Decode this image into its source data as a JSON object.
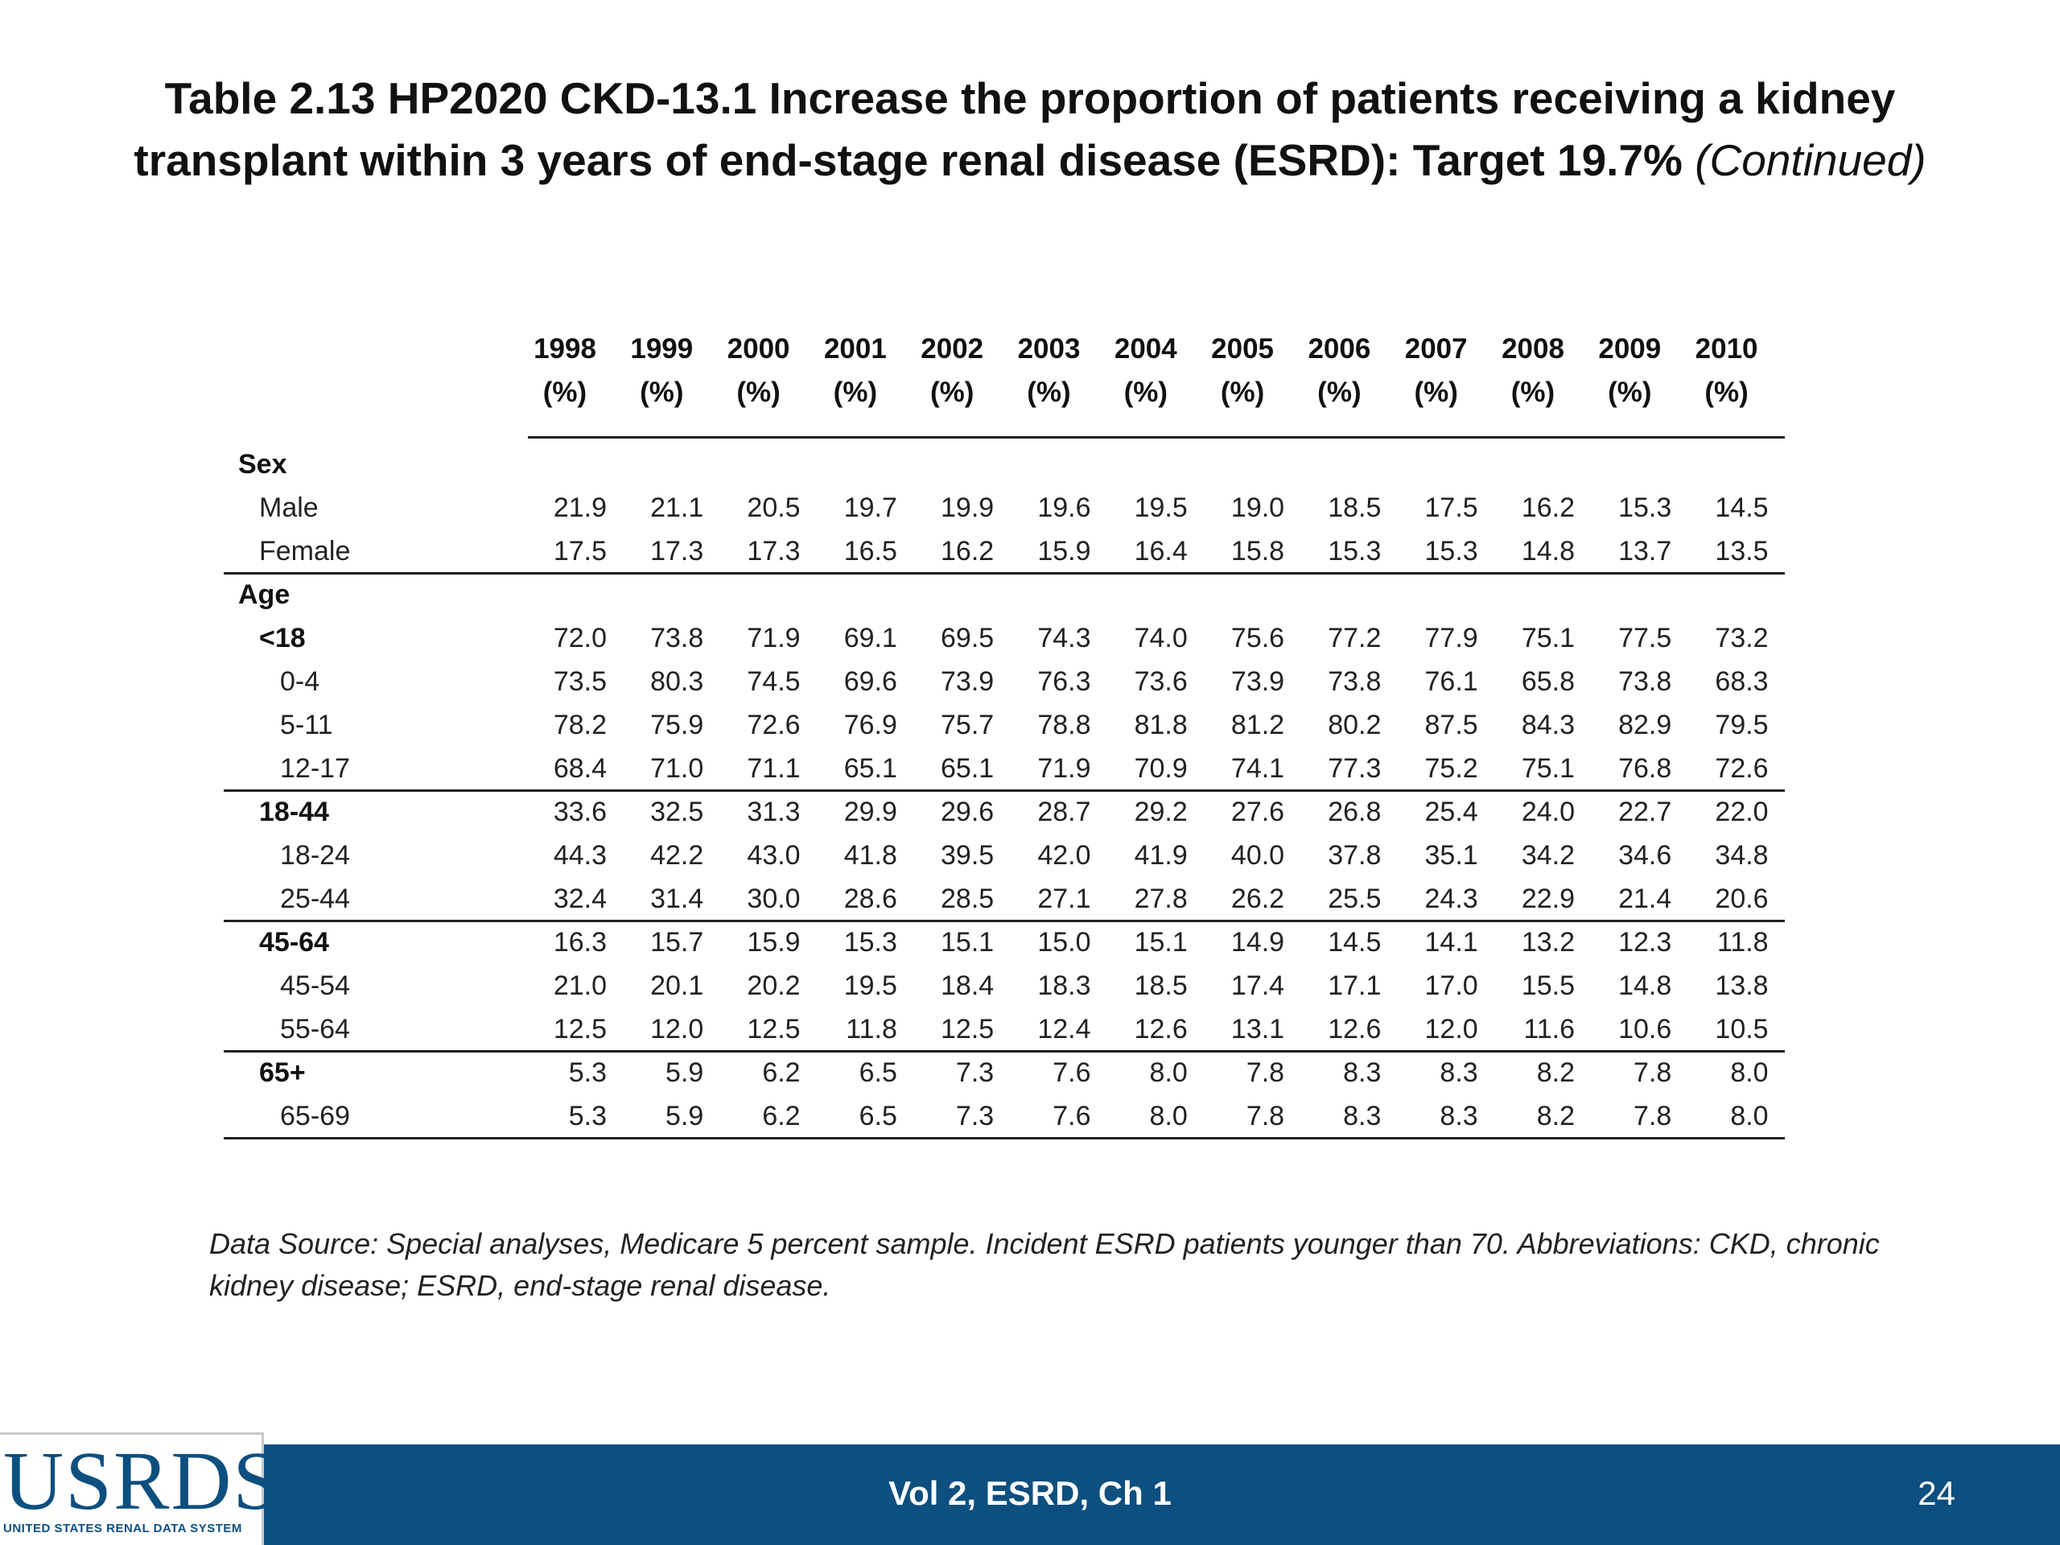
{
  "slide": {
    "title_main": "Table 2.13 HP2020 CKD-13.1 Increase the proportion of patients receiving a kidney transplant within 3 years of end-stage renal disease (ESRD): Target 19.7%",
    "title_continued": "(Continued)",
    "source_note": "Data Source: Special analyses, Medicare 5 percent sample. Incident ESRD patients younger than 70. Abbreviations: CKD, chronic kidney disease; ESRD, end-stage renal disease.",
    "footer_center": "Vol 2, ESRD, Ch 1",
    "page_number": "24",
    "logo_text": "USRDS",
    "logo_subtext": "UNITED STATES RENAL DATA SYSTEM"
  },
  "colors": {
    "footer_bar": "#0d4f7f",
    "logo": "#0d4f7f"
  },
  "table": {
    "years": [
      "1998",
      "1999",
      "2000",
      "2001",
      "2002",
      "2003",
      "2004",
      "2005",
      "2006",
      "2007",
      "2008",
      "2009",
      "2010"
    ],
    "unit": "(%)",
    "rows": [
      {
        "label": "Sex",
        "indent": 0,
        "bold": true,
        "values": []
      },
      {
        "label": "Male",
        "indent": 1,
        "bold": false,
        "values": [
          "21.9",
          "21.1",
          "20.5",
          "19.7",
          "19.9",
          "19.6",
          "19.5",
          "19.0",
          "18.5",
          "17.5",
          "16.2",
          "15.3",
          "14.5"
        ]
      },
      {
        "label": "Female",
        "indent": 1,
        "bold": false,
        "values": [
          "17.5",
          "17.3",
          "17.3",
          "16.5",
          "16.2",
          "15.9",
          "16.4",
          "15.8",
          "15.3",
          "15.3",
          "14.8",
          "13.7",
          "13.5"
        ]
      },
      {
        "label": "Age",
        "indent": 0,
        "bold": true,
        "values": []
      },
      {
        "label": "<18",
        "indent": 1,
        "bold": true,
        "values": [
          "72.0",
          "73.8",
          "71.9",
          "69.1",
          "69.5",
          "74.3",
          "74.0",
          "75.6",
          "77.2",
          "77.9",
          "75.1",
          "77.5",
          "73.2"
        ]
      },
      {
        "label": "0-4",
        "indent": 2,
        "bold": false,
        "values": [
          "73.5",
          "80.3",
          "74.5",
          "69.6",
          "73.9",
          "76.3",
          "73.6",
          "73.9",
          "73.8",
          "76.1",
          "65.8",
          "73.8",
          "68.3"
        ]
      },
      {
        "label": "5-11",
        "indent": 2,
        "bold": false,
        "values": [
          "78.2",
          "75.9",
          "72.6",
          "76.9",
          "75.7",
          "78.8",
          "81.8",
          "81.2",
          "80.2",
          "87.5",
          "84.3",
          "82.9",
          "79.5"
        ]
      },
      {
        "label": "12-17",
        "indent": 2,
        "bold": false,
        "values": [
          "68.4",
          "71.0",
          "71.1",
          "65.1",
          "65.1",
          "71.9",
          "70.9",
          "74.1",
          "77.3",
          "75.2",
          "75.1",
          "76.8",
          "72.6"
        ]
      },
      {
        "label": "18-44",
        "indent": 1,
        "bold": true,
        "values": [
          "33.6",
          "32.5",
          "31.3",
          "29.9",
          "29.6",
          "28.7",
          "29.2",
          "27.6",
          "26.8",
          "25.4",
          "24.0",
          "22.7",
          "22.0"
        ]
      },
      {
        "label": "18-24",
        "indent": 2,
        "bold": false,
        "values": [
          "44.3",
          "42.2",
          "43.0",
          "41.8",
          "39.5",
          "42.0",
          "41.9",
          "40.0",
          "37.8",
          "35.1",
          "34.2",
          "34.6",
          "34.8"
        ]
      },
      {
        "label": "25-44",
        "indent": 2,
        "bold": false,
        "values": [
          "32.4",
          "31.4",
          "30.0",
          "28.6",
          "28.5",
          "27.1",
          "27.8",
          "26.2",
          "25.5",
          "24.3",
          "22.9",
          "21.4",
          "20.6"
        ]
      },
      {
        "label": "45-64",
        "indent": 1,
        "bold": true,
        "values": [
          "16.3",
          "15.7",
          "15.9",
          "15.3",
          "15.1",
          "15.0",
          "15.1",
          "14.9",
          "14.5",
          "14.1",
          "13.2",
          "12.3",
          "11.8"
        ]
      },
      {
        "label": "45-54",
        "indent": 2,
        "bold": false,
        "values": [
          "21.0",
          "20.1",
          "20.2",
          "19.5",
          "18.4",
          "18.3",
          "18.5",
          "17.4",
          "17.1",
          "17.0",
          "15.5",
          "14.8",
          "13.8"
        ]
      },
      {
        "label": "55-64",
        "indent": 2,
        "bold": false,
        "values": [
          "12.5",
          "12.0",
          "12.5",
          "11.8",
          "12.5",
          "12.4",
          "12.6",
          "13.1",
          "12.6",
          "12.0",
          "11.6",
          "10.6",
          "10.5"
        ]
      },
      {
        "label": "65+",
        "indent": 1,
        "bold": true,
        "values": [
          "5.3",
          "5.9",
          "6.2",
          "6.5",
          "7.3",
          "7.6",
          "8.0",
          "7.8",
          "8.3",
          "8.3",
          "8.2",
          "7.8",
          "8.0"
        ]
      },
      {
        "label": "65-69",
        "indent": 2,
        "bold": false,
        "values": [
          "5.3",
          "5.9",
          "6.2",
          "6.5",
          "7.3",
          "7.6",
          "8.0",
          "7.8",
          "8.3",
          "8.3",
          "8.2",
          "7.8",
          "8.0"
        ]
      }
    ]
  }
}
